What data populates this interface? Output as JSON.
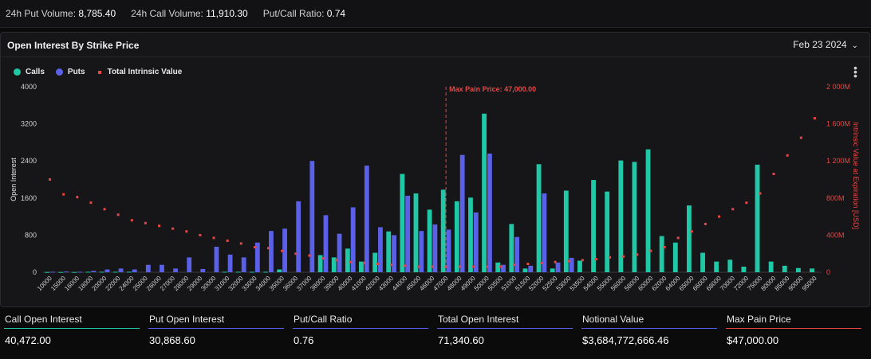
{
  "topbar": {
    "put_volume_label": "24h Put Volume:",
    "put_volume_value": "8,785.40",
    "call_volume_label": "24h Call Volume:",
    "call_volume_value": "11,910.30",
    "ratio_label": "Put/Call Ratio:",
    "ratio_value": "0.74"
  },
  "panel": {
    "title": "Open Interest By Strike Price",
    "date": "Feb 23 2024",
    "legend": {
      "calls": "Calls",
      "puts": "Puts",
      "intrinsic": "Total Intrinsic Value"
    }
  },
  "colors": {
    "calls": "#1fc8a6",
    "puts": "#5a61e6",
    "intrinsic": "#e84545",
    "maxpain": "#e84545"
  },
  "chart_data": {
    "type": "bar",
    "ylabel": "Open Interest",
    "y2label": "Intrinsic Value at Expiration [USD]",
    "ylim": [
      0,
      4000
    ],
    "yticks": [
      "0",
      "800",
      "1600",
      "2400",
      "3200",
      "4000"
    ],
    "y2lim": [
      0,
      2000
    ],
    "y2ticks": [
      "0",
      "400M",
      "800M",
      "1 200M",
      "1 600M",
      "2 000M"
    ],
    "max_pain_label": "Max Pain Price: 47,000.00",
    "max_pain_category": "47000",
    "categories": [
      "10000",
      "15000",
      "16000",
      "18000",
      "20000",
      "22000",
      "24000",
      "25000",
      "26000",
      "27000",
      "28000",
      "29000",
      "30000",
      "31000",
      "32000",
      "33000",
      "34000",
      "35000",
      "36000",
      "37000",
      "38000",
      "39000",
      "40000",
      "41000",
      "42000",
      "43000",
      "44000",
      "45000",
      "46000",
      "47000",
      "48000",
      "49000",
      "50000",
      "50500",
      "51000",
      "51500",
      "52000",
      "52500",
      "53000",
      "53500",
      "54000",
      "55000",
      "56000",
      "58000",
      "60000",
      "62000",
      "64000",
      "65000",
      "66000",
      "68000",
      "70000",
      "72000",
      "75000",
      "80000",
      "85000",
      "90000",
      "95000"
    ],
    "series": [
      {
        "name": "Calls",
        "values": [
          5,
          5,
          5,
          10,
          10,
          10,
          10,
          0,
          0,
          0,
          0,
          0,
          0,
          10,
          10,
          10,
          10,
          60,
          0,
          0,
          370,
          320,
          510,
          230,
          420,
          880,
          2120,
          1700,
          1350,
          1780,
          1530,
          1610,
          3420,
          210,
          1040,
          80,
          2330,
          80,
          1760,
          250,
          1990,
          1740,
          2410,
          2380,
          2650,
          780,
          640,
          1440,
          420,
          230,
          270,
          120,
          2320,
          230,
          140,
          90,
          80
        ]
      },
      {
        "name": "Puts",
        "values": [
          10,
          15,
          10,
          30,
          60,
          80,
          60,
          160,
          160,
          80,
          320,
          70,
          550,
          380,
          320,
          640,
          890,
          940,
          1530,
          2400,
          1230,
          830,
          1400,
          2300,
          970,
          800,
          1650,
          890,
          1030,
          920,
          2530,
          1290,
          2560,
          160,
          760,
          140,
          1700,
          210,
          310,
          0,
          0,
          0,
          0,
          0,
          0,
          0,
          0,
          0,
          0,
          0,
          0,
          0,
          0,
          0,
          0,
          0,
          0
        ]
      },
      {
        "name": "Total Intrinsic Value",
        "unit": "M USD",
        "values": [
          1000,
          840,
          810,
          750,
          680,
          620,
          560,
          530,
          500,
          470,
          440,
          400,
          370,
          340,
          310,
          270,
          260,
          230,
          200,
          180,
          150,
          130,
          110,
          100,
          90,
          80,
          70,
          60,
          60,
          60,
          60,
          60,
          60,
          60,
          80,
          90,
          100,
          110,
          120,
          130,
          140,
          160,
          170,
          190,
          230,
          270,
          370,
          440,
          520,
          600,
          680,
          750,
          850,
          1060,
          1260,
          1450,
          1660
        ]
      }
    ]
  },
  "stats": [
    {
      "label": "Call Open Interest",
      "value": "40,472.00",
      "color": "#1fc8a6"
    },
    {
      "label": "Put Open Interest",
      "value": "30,868.60",
      "color": "#5a61e6"
    },
    {
      "label": "Put/Call Ratio",
      "value": "0.76",
      "color": "#5a61e6"
    },
    {
      "label": "Total Open Interest",
      "value": "71,340.60",
      "color": "#5a61e6"
    },
    {
      "label": "Notional Value",
      "value": "$3,684,772,666.46",
      "color": "#5a61e6"
    },
    {
      "label": "Max Pain Price",
      "value": "$47,000.00",
      "color": "#e84545"
    }
  ]
}
